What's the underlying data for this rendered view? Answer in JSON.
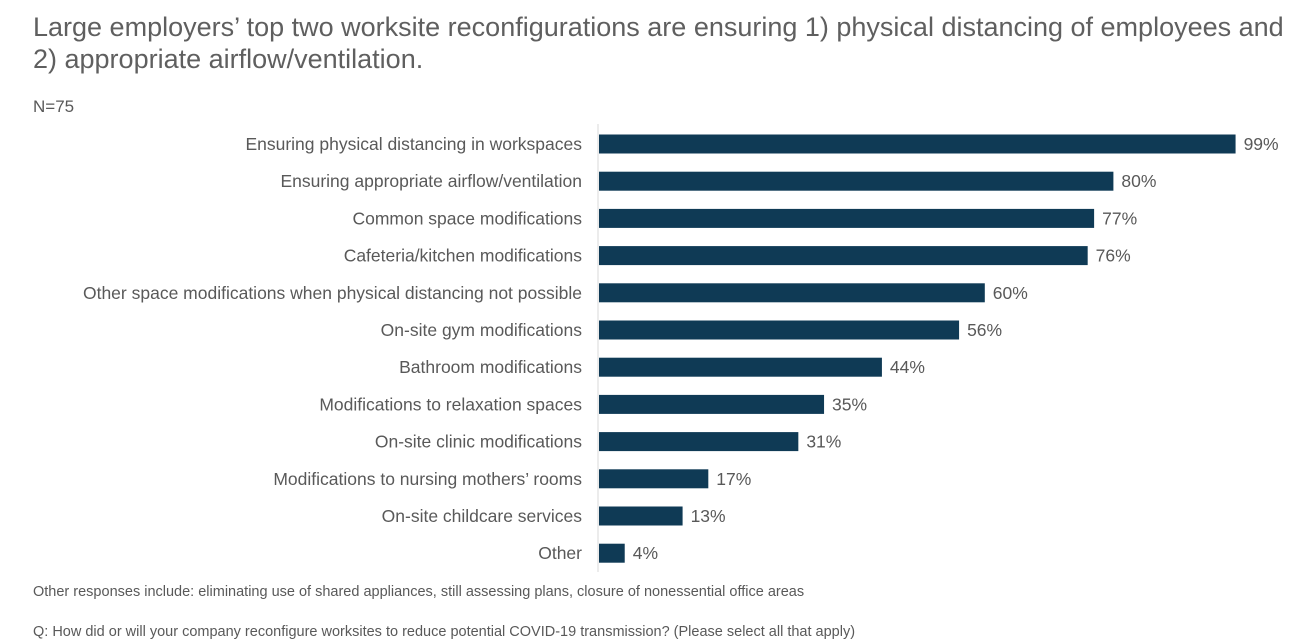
{
  "title": "Large employers’ top two worksite reconfigurations are ensuring 1) physical distancing of employees and 2) appropriate airflow/ventilation.",
  "sample_size": "N=75",
  "note": "Other responses include: eliminating use of shared appliances, still assessing plans, closure of nonessential office areas",
  "question": "Q: How did or will your company reconfigure worksites to reduce potential COVID-19 transmission? (Please select all that apply)",
  "colors": {
    "bar": "#0f3a55",
    "text": "#595959",
    "axis": "#d9d9d9"
  },
  "chart_data": {
    "type": "bar",
    "orientation": "horizontal",
    "categories": [
      "Ensuring physical distancing in workspaces",
      "Ensuring appropriate airflow/ventilation",
      "Common space modifications",
      "Cafeteria/kitchen modifications",
      "Other space modifications when physical distancing not possible",
      "On-site gym modifications",
      "Bathroom modifications",
      "Modifications to relaxation spaces",
      "On-site clinic modifications",
      "Modifications to nursing mothers’ rooms",
      "On-site childcare services",
      "Other"
    ],
    "values": [
      99,
      80,
      77,
      76,
      60,
      56,
      44,
      35,
      31,
      17,
      13,
      4
    ],
    "value_labels": [
      "99%",
      "80%",
      "77%",
      "76%",
      "60%",
      "56%",
      "44%",
      "35%",
      "31%",
      "17%",
      "13%",
      "4%"
    ],
    "unit": "%",
    "xlim": [
      0,
      100
    ],
    "grid": false,
    "legend": "none"
  }
}
